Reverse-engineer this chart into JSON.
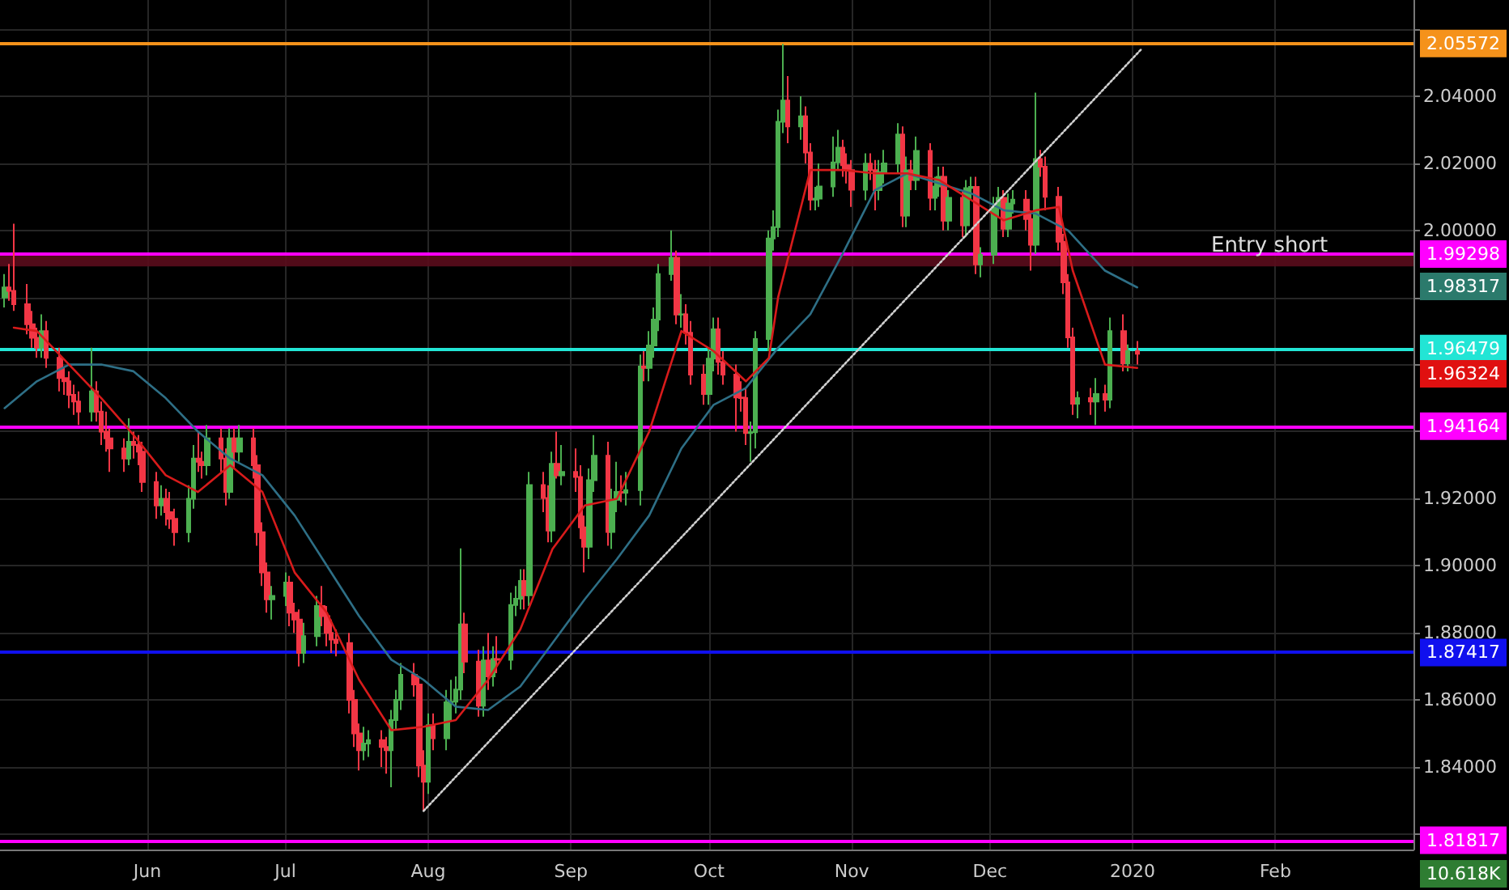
{
  "chart_data": {
    "type": "candlestick",
    "xlim": [
      "2019-04-30",
      "2020-03-02"
    ],
    "xticks": [
      {
        "value": "2019-06-01",
        "label": "Jun"
      },
      {
        "value": "2019-07-01",
        "label": "Jul"
      },
      {
        "value": "2019-08-01",
        "label": "Aug"
      },
      {
        "value": "2019-09-01",
        "label": "Sep"
      },
      {
        "value": "2019-10-01",
        "label": "Oct"
      },
      {
        "value": "2019-11-01",
        "label": "Nov"
      },
      {
        "value": "2019-12-01",
        "label": "Dec"
      },
      {
        "value": "2020-01-01",
        "label": "2020"
      },
      {
        "value": "2020-02-01",
        "label": "Feb"
      }
    ],
    "ylim": [
      1.8154,
      2.0687
    ],
    "yticks": [
      {
        "value": 1.82,
        "label": null
      },
      {
        "value": 1.84,
        "label": "1.84000"
      },
      {
        "value": 1.86,
        "label": "1.86000"
      },
      {
        "value": 1.88,
        "label": "1.88000"
      },
      {
        "value": 1.9,
        "label": "1.90000"
      },
      {
        "value": 1.92,
        "label": "1.92000"
      },
      {
        "value": 1.94,
        "label": null
      },
      {
        "value": 1.96,
        "label": null
      },
      {
        "value": 1.98,
        "label": null
      },
      {
        "value": 2.0,
        "label": "2.00000"
      },
      {
        "value": 2.02,
        "label": "2.02000"
      },
      {
        "value": 2.04,
        "label": "2.04000"
      },
      {
        "value": 2.06,
        "label": null
      }
    ],
    "grid": true,
    "marker": "none",
    "series": [
      {
        "type": "line",
        "color": "#2e6f86",
        "x": [
          "2019-05-01",
          "2019-05-08",
          "2019-05-15",
          "2019-05-22",
          "2019-05-29",
          "2019-06-05",
          "2019-06-12",
          "2019-06-19",
          "2019-06-26",
          "2019-07-03",
          "2019-07-10",
          "2019-07-17",
          "2019-07-24",
          "2019-07-31",
          "2019-08-07",
          "2019-08-14",
          "2019-08-21",
          "2019-08-28",
          "2019-09-04",
          "2019-09-11",
          "2019-09-18",
          "2019-09-25",
          "2019-10-02",
          "2019-10-09",
          "2019-10-16",
          "2019-10-23",
          "2019-10-30",
          "2019-11-06",
          "2019-11-13",
          "2019-11-20",
          "2019-11-27",
          "2019-12-04",
          "2019-12-11",
          "2019-12-18",
          "2019-12-26",
          "2020-01-02"
        ],
        "values": [
          1.947,
          1.955,
          1.96,
          1.96,
          1.958,
          1.95,
          1.94,
          1.932,
          1.927,
          1.915,
          1.9,
          1.885,
          1.872,
          1.866,
          1.858,
          1.857,
          1.864,
          1.877,
          1.89,
          1.902,
          1.915,
          1.935,
          1.948,
          1.953,
          1.965,
          1.975,
          1.993,
          2.012,
          2.017,
          2.014,
          2.011,
          2.006,
          2.005,
          2.0,
          1.988,
          1.983
        ]
      },
      {
        "type": "line",
        "color": "#d81b1b",
        "x": [
          "2019-05-03",
          "2019-05-08",
          "2019-05-15",
          "2019-05-22",
          "2019-05-29",
          "2019-06-05",
          "2019-06-12",
          "2019-06-19",
          "2019-06-26",
          "2019-07-03",
          "2019-07-10",
          "2019-07-17",
          "2019-07-24",
          "2019-07-31",
          "2019-08-07",
          "2019-08-14",
          "2019-08-21",
          "2019-08-28",
          "2019-09-04",
          "2019-09-11",
          "2019-09-18",
          "2019-09-25",
          "2019-10-02",
          "2019-10-09",
          "2019-10-14",
          "2019-10-16",
          "2019-10-23",
          "2019-10-30",
          "2019-11-06",
          "2019-11-13",
          "2019-11-20",
          "2019-11-27",
          "2019-12-04",
          "2019-12-11",
          "2019-12-16",
          "2019-12-19",
          "2019-12-26",
          "2020-01-02"
        ],
        "values": [
          1.971,
          1.97,
          1.96,
          1.95,
          1.939,
          1.927,
          1.922,
          1.93,
          1.922,
          1.898,
          1.886,
          1.866,
          1.851,
          1.852,
          1.854,
          1.866,
          1.881,
          1.905,
          1.918,
          1.92,
          1.94,
          1.97,
          1.964,
          1.955,
          1.962,
          1.98,
          2.018,
          2.018,
          2.017,
          2.017,
          2.015,
          2.009,
          2.003,
          2.006,
          2.007,
          1.988,
          1.96,
          1.959
        ]
      },
      {
        "type": "line",
        "color": "#d0d0d0",
        "line_style": "dotted",
        "x": [
          "2019-07-31",
          "2020-01-03"
        ],
        "values": [
          1.8269,
          2.0542
        ]
      },
      {
        "colors": [
          "#4caf50",
          "#f23645",
          "#f23645",
          "#f23645",
          "#f23645",
          "#f23645",
          "#4caf50",
          "#f23645",
          "#f23645",
          "#f23645",
          "#f23645",
          "#f23645",
          "#f23645",
          "#4caf50",
          "#f23645",
          "#f23645",
          "#f23645",
          "#f23645",
          "#f23645",
          "#4caf50",
          "#f23645",
          "#f23645",
          "#f23645",
          "#f23645",
          "#4caf50",
          "#f23645",
          "#f23645",
          "#f23645",
          "#4caf50",
          "#4caf50",
          "#f23645",
          "#f23645",
          "#4caf50",
          "#f23645",
          "#f23645",
          "#4caf50",
          "#f23645",
          "#4caf50",
          "#f23645",
          "#f23645",
          "#f23645",
          "#f23645",
          "#4caf50",
          "#4caf50",
          "#f23645",
          "#f23645",
          "#f23645",
          "#4caf50",
          "#4caf50",
          "#f23645",
          "#f23645",
          "#f23645",
          "#f23645",
          "#f23645",
          "#f23645",
          "#f23645",
          "#4caf50",
          "#4caf50",
          "#f23645",
          "#f23645",
          "#4caf50",
          "#4caf50",
          "#4caf50",
          "#f23645",
          "#f23645",
          "#f23645",
          "#4caf50",
          "#f23645",
          "#4caf50",
          "#4caf50",
          "#4caf50",
          "#4caf50",
          "#f23645",
          "#f23645",
          "#4caf50",
          "#f23645",
          "#4caf50",
          "#f23645",
          "#4caf50",
          "#4caf50",
          "#4caf50",
          "#f23645",
          "#4caf50",
          "#f23645",
          "#f23645",
          "#4caf50",
          "#f23645",
          "#4caf50",
          "#f23645",
          "#f23645",
          "#f23645",
          "#4caf50",
          "#4caf50",
          "#f23645",
          "#4caf50",
          "#4caf50",
          "#f23645",
          "#4caf50",
          "#4caf50",
          "#f23645",
          "#4caf50",
          "#4caf50",
          "#4caf50",
          "#4caf50",
          "#f23645",
          "#4caf50",
          "#f23645",
          "#f23645",
          "#f23645",
          "#4caf50",
          "#4caf50",
          "#f23645",
          "#f23645",
          "#f23645",
          "#f23645",
          "#f23645",
          "#4caf50",
          "#4caf50",
          "#4caf50",
          "#4caf50",
          "#4caf50",
          "#4caf50",
          "#f23645",
          "#4caf50",
          "#f23645",
          "#f23645",
          "#4caf50",
          "#4caf50",
          "#4caf50",
          "#4caf50",
          "#f23645",
          "#f23645",
          "#f23645",
          "#4caf50",
          "#f23645",
          "#f23645",
          "#4caf50",
          "#4caf50",
          "#4caf50",
          "#f23645",
          "#4caf50",
          "#f23645",
          "#4caf50",
          "#f23645",
          "#4caf50",
          "#4caf50",
          "#f23645",
          "#4caf50",
          "#f23645",
          "#4caf50",
          "#4caf50",
          "#f23645",
          "#4caf50",
          "#4caf50",
          "#4caf50",
          "#f23645",
          "#4caf50",
          "#4caf50",
          "#f23645",
          "#f23645",
          "#4caf50",
          "#f23645",
          "#f23645",
          "#f23645",
          "#f23645",
          "#f23645",
          "#f23645",
          "#4caf50",
          "#f23645",
          "#4caf50",
          "#f23645",
          "#4caf50",
          "#f23645",
          "#4caf50",
          "#f23645"
        ],
        "x": [
          "2019-05-01",
          "2019-05-02",
          "2019-05-03",
          "2019-05-06",
          "2019-05-07",
          "2019-05-08",
          "2019-05-09",
          "2019-05-10",
          "2019-05-13",
          "2019-05-14",
          "2019-05-15",
          "2019-05-16",
          "2019-05-17",
          "2019-05-20",
          "2019-05-21",
          "2019-05-22",
          "2019-05-23",
          "2019-05-24",
          "2019-05-27",
          "2019-05-28",
          "2019-05-29",
          "2019-05-30",
          "2019-05-31",
          "2019-06-03",
          "2019-06-04",
          "2019-06-05",
          "2019-06-06",
          "2019-06-07",
          "2019-06-10",
          "2019-06-11",
          "2019-06-12",
          "2019-06-13",
          "2019-06-14",
          "2019-06-17",
          "2019-06-18",
          "2019-06-19",
          "2019-06-20",
          "2019-06-21",
          "2019-06-24",
          "2019-06-25",
          "2019-06-26",
          "2019-06-27",
          "2019-06-28",
          "2019-07-01",
          "2019-07-02",
          "2019-07-03",
          "2019-07-04",
          "2019-07-05",
          "2019-07-08",
          "2019-07-09",
          "2019-07-10",
          "2019-07-11",
          "2019-07-12",
          "2019-07-15",
          "2019-07-16",
          "2019-07-17",
          "2019-07-18",
          "2019-07-19",
          "2019-07-22",
          "2019-07-23",
          "2019-07-24",
          "2019-07-25",
          "2019-07-26",
          "2019-07-29",
          "2019-07-30",
          "2019-07-31",
          "2019-08-01",
          "2019-08-02",
          "2019-08-05",
          "2019-08-06",
          "2019-08-07",
          "2019-08-08",
          "2019-08-09",
          "2019-08-12",
          "2019-08-13",
          "2019-08-14",
          "2019-08-15",
          "2019-08-16",
          "2019-08-19",
          "2019-08-20",
          "2019-08-21",
          "2019-08-22",
          "2019-08-23",
          "2019-08-26",
          "2019-08-27",
          "2019-08-28",
          "2019-08-29",
          "2019-08-30",
          "2019-09-02",
          "2019-09-03",
          "2019-09-04",
          "2019-09-05",
          "2019-09-06",
          "2019-09-09",
          "2019-09-10",
          "2019-09-11",
          "2019-09-12",
          "2019-09-13",
          "2019-09-16",
          "2019-09-17",
          "2019-09-18",
          "2019-09-19",
          "2019-09-20",
          "2019-09-23",
          "2019-09-24",
          "2019-09-25",
          "2019-09-26",
          "2019-09-27",
          "2019-09-30",
          "2019-10-01",
          "2019-10-02",
          "2019-10-03",
          "2019-10-04",
          "2019-10-07",
          "2019-10-08",
          "2019-10-09",
          "2019-10-10",
          "2019-10-11",
          "2019-10-14",
          "2019-10-15",
          "2019-10-16",
          "2019-10-17",
          "2019-10-18",
          "2019-10-21",
          "2019-10-22",
          "2019-10-23",
          "2019-10-24",
          "2019-10-25",
          "2019-10-28",
          "2019-10-29",
          "2019-10-30",
          "2019-10-31",
          "2019-11-01",
          "2019-11-04",
          "2019-11-05",
          "2019-11-06",
          "2019-11-07",
          "2019-11-08",
          "2019-11-11",
          "2019-11-12",
          "2019-11-13",
          "2019-11-14",
          "2019-11-15",
          "2019-11-18",
          "2019-11-19",
          "2019-11-20",
          "2019-11-21",
          "2019-11-22",
          "2019-11-25",
          "2019-11-26",
          "2019-11-27",
          "2019-11-28",
          "2019-11-29",
          "2019-12-02",
          "2019-12-03",
          "2019-12-04",
          "2019-12-05",
          "2019-12-06",
          "2019-12-09",
          "2019-12-10",
          "2019-12-11",
          "2019-12-12",
          "2019-12-13",
          "2019-12-16",
          "2019-12-17",
          "2019-12-18",
          "2019-12-19",
          "2019-12-20",
          "2019-12-23",
          "2019-12-24",
          "2019-12-26",
          "2019-12-27",
          "2019-12-30",
          "2019-12-31",
          "2020-01-02"
        ],
        "ohlc": [
          [
            1.98,
            1.987,
            1.977,
            1.983
          ],
          [
            1.983,
            1.99,
            1.979,
            1.982
          ],
          [
            1.982,
            2.002,
            1.976,
            1.978
          ],
          [
            1.978,
            1.984,
            1.969,
            1.972
          ],
          [
            1.972,
            1.976,
            1.965,
            1.968
          ],
          [
            1.968,
            1.971,
            1.962,
            1.965
          ],
          [
            1.965,
            1.975,
            1.962,
            1.97
          ],
          [
            1.97,
            1.973,
            1.959,
            1.962
          ],
          [
            1.962,
            1.965,
            1.952,
            1.956
          ],
          [
            1.956,
            1.959,
            1.951,
            1.955
          ],
          [
            1.955,
            1.958,
            1.947,
            1.951
          ],
          [
            1.951,
            1.954,
            1.945,
            1.949
          ],
          [
            1.949,
            1.952,
            1.942,
            1.946
          ],
          [
            1.946,
            1.965,
            1.943,
            1.952
          ],
          [
            1.952,
            1.955,
            1.943,
            1.946
          ],
          [
            1.946,
            1.949,
            1.936,
            1.94
          ],
          [
            1.94,
            1.946,
            1.934,
            1.938
          ],
          [
            1.938,
            1.941,
            1.928,
            1.935
          ],
          [
            1.935,
            1.938,
            1.928,
            1.932
          ],
          [
            1.932,
            1.944,
            1.93,
            1.937
          ],
          [
            1.937,
            1.94,
            1.932,
            1.936
          ],
          [
            1.936,
            1.939,
            1.93,
            1.934
          ],
          [
            1.934,
            1.937,
            1.922,
            1.925
          ],
          [
            1.925,
            1.928,
            1.914,
            1.918
          ],
          [
            1.918,
            1.924,
            1.915,
            1.92
          ],
          [
            1.92,
            1.923,
            1.912,
            1.916
          ],
          [
            1.916,
            1.922,
            1.911,
            1.914
          ],
          [
            1.914,
            1.917,
            1.906,
            1.91
          ],
          [
            1.91,
            1.924,
            1.907,
            1.92
          ],
          [
            1.92,
            1.936,
            1.917,
            1.932
          ],
          [
            1.932,
            1.94,
            1.928,
            1.931
          ],
          [
            1.931,
            1.934,
            1.926,
            1.93
          ],
          [
            1.93,
            1.942,
            1.927,
            1.938
          ],
          [
            1.938,
            1.941,
            1.928,
            1.932
          ],
          [
            1.932,
            1.935,
            1.918,
            1.922
          ],
          [
            1.922,
            1.941,
            1.92,
            1.938
          ],
          [
            1.938,
            1.941,
            1.929,
            1.934
          ],
          [
            1.934,
            1.942,
            1.931,
            1.938
          ],
          [
            1.938,
            1.941,
            1.926,
            1.93
          ],
          [
            1.93,
            1.933,
            1.906,
            1.91
          ],
          [
            1.91,
            1.913,
            1.894,
            1.898
          ],
          [
            1.898,
            1.901,
            1.886,
            1.89
          ],
          [
            1.89,
            1.894,
            1.884,
            1.891
          ],
          [
            1.891,
            1.898,
            1.888,
            1.895
          ],
          [
            1.895,
            1.897,
            1.882,
            1.886
          ],
          [
            1.886,
            1.889,
            1.88,
            1.884
          ],
          [
            1.884,
            1.887,
            1.87,
            1.874
          ],
          [
            1.874,
            1.883,
            1.871,
            1.879
          ],
          [
            1.879,
            1.891,
            1.876,
            1.888
          ],
          [
            1.888,
            1.894,
            1.882,
            1.885
          ],
          [
            1.885,
            1.888,
            1.876,
            1.88
          ],
          [
            1.88,
            1.884,
            1.874,
            1.878
          ],
          [
            1.878,
            1.881,
            1.873,
            1.877
          ],
          [
            1.877,
            1.88,
            1.856,
            1.86
          ],
          [
            1.86,
            1.863,
            1.846,
            1.85
          ],
          [
            1.85,
            1.853,
            1.839,
            1.845
          ],
          [
            1.845,
            1.852,
            1.842,
            1.847
          ],
          [
            1.847,
            1.851,
            1.843,
            1.848
          ],
          [
            1.848,
            1.851,
            1.84,
            1.846
          ],
          [
            1.846,
            1.849,
            1.838,
            1.845
          ],
          [
            1.845,
            1.857,
            1.834,
            1.854
          ],
          [
            1.854,
            1.863,
            1.851,
            1.86
          ],
          [
            1.86,
            1.871,
            1.857,
            1.8675
          ],
          [
            1.8675,
            1.871,
            1.861,
            1.8646
          ],
          [
            1.8646,
            1.867,
            1.837,
            1.8404
          ],
          [
            1.8404,
            1.845,
            1.8269,
            1.8356
          ],
          [
            1.8356,
            1.856,
            1.832,
            1.8525
          ],
          [
            1.8525,
            1.856,
            1.845,
            1.8486
          ],
          [
            1.8486,
            1.863,
            1.845,
            1.8593
          ],
          [
            1.8593,
            1.866,
            1.854,
            1.8595
          ],
          [
            1.8595,
            1.867,
            1.856,
            1.8631
          ],
          [
            1.8631,
            1.9052,
            1.86,
            1.8825
          ],
          [
            1.8825,
            1.886,
            1.868,
            1.8714
          ],
          [
            1.8714,
            1.875,
            1.855,
            1.8583
          ],
          [
            1.8583,
            1.876,
            1.855,
            1.8718
          ],
          [
            1.8718,
            1.88,
            1.863,
            1.867
          ],
          [
            1.867,
            1.876,
            1.864,
            1.8722
          ],
          [
            1.8722,
            1.879,
            1.868,
            1.872
          ],
          [
            1.872,
            1.892,
            1.869,
            1.8883
          ],
          [
            1.8883,
            1.894,
            1.885,
            1.8902
          ],
          [
            1.8902,
            1.899,
            1.887,
            1.8955
          ],
          [
            1.8955,
            1.899,
            1.887,
            1.8912
          ],
          [
            1.8912,
            1.928,
            1.888,
            1.9241
          ],
          [
            1.9241,
            1.928,
            1.916,
            1.9202
          ],
          [
            1.9202,
            1.924,
            1.907,
            1.9105
          ],
          [
            1.9105,
            1.934,
            1.907,
            1.9304
          ],
          [
            1.9304,
            1.94,
            1.926,
            1.927
          ],
          [
            1.927,
            1.936,
            1.924,
            1.928
          ],
          [
            1.928,
            1.935,
            1.922,
            1.9265
          ],
          [
            1.9265,
            1.93,
            1.908,
            1.9115
          ],
          [
            1.9115,
            1.915,
            1.898,
            1.9057
          ],
          [
            1.9057,
            1.929,
            1.902,
            1.9255
          ],
          [
            1.9255,
            1.939,
            1.922,
            1.9328
          ],
          [
            1.9328,
            1.937,
            1.906,
            1.9101
          ],
          [
            1.9101,
            1.923,
            1.905,
            1.9197
          ],
          [
            1.9197,
            1.931,
            1.916,
            1.922
          ],
          [
            1.922,
            1.927,
            1.919,
            1.9218
          ],
          [
            1.9218,
            1.928,
            1.918,
            1.9226
          ],
          [
            1.9226,
            1.963,
            1.918,
            1.9594
          ],
          [
            1.9594,
            1.964,
            1.955,
            1.959
          ],
          [
            1.959,
            1.97,
            1.955,
            1.9657
          ],
          [
            1.9657,
            1.977,
            1.962,
            1.9734
          ],
          [
            1.9734,
            1.99,
            1.97,
            1.987
          ],
          [
            1.987,
            2.0,
            1.985,
            1.9918
          ],
          [
            1.9918,
            1.994,
            1.972,
            1.9749
          ],
          [
            1.9749,
            1.981,
            1.971,
            1.975
          ],
          [
            1.975,
            1.978,
            1.966,
            1.9695
          ],
          [
            1.9695,
            1.973,
            1.954,
            1.957
          ],
          [
            1.957,
            1.96,
            1.948,
            1.9512
          ],
          [
            1.9512,
            1.965,
            1.948,
            1.9618
          ],
          [
            1.9618,
            1.974,
            1.958,
            1.9705
          ],
          [
            1.9705,
            1.974,
            1.957,
            1.9608
          ],
          [
            1.9608,
            1.964,
            1.954,
            1.957
          ],
          [
            1.957,
            1.96,
            1.94,
            1.9502
          ],
          [
            1.9502,
            1.955,
            1.946,
            1.95
          ],
          [
            1.95,
            1.953,
            1.936,
            1.9396
          ],
          [
            1.9396,
            1.943,
            1.931,
            1.9398
          ],
          [
            1.9398,
            1.97,
            1.935,
            1.9676
          ],
          [
            1.9676,
            2.0,
            1.964,
            1.9976
          ],
          [
            1.9976,
            2.006,
            1.994,
            2.001
          ],
          [
            2.001,
            2.036,
            1.998,
            2.0324
          ],
          [
            2.0324,
            2.0556,
            2.029,
            2.0387
          ],
          [
            2.0387,
            2.046,
            2.026,
            2.031
          ],
          [
            2.031,
            2.04,
            2.027,
            2.034
          ],
          [
            2.034,
            2.037,
            2.02,
            2.0232
          ],
          [
            2.0232,
            2.026,
            2.006,
            2.0092
          ],
          [
            2.0092,
            2.013,
            2.006,
            2.0095
          ],
          [
            2.0095,
            2.02,
            2.007,
            2.0131
          ],
          [
            2.0131,
            2.028,
            2.01,
            2.0203
          ],
          [
            2.0203,
            2.03,
            2.018,
            2.0247
          ],
          [
            2.0247,
            2.027,
            2.016,
            2.0194
          ],
          [
            2.0194,
            2.023,
            2.014,
            2.018
          ],
          [
            2.018,
            2.021,
            2.007,
            2.0121
          ],
          [
            2.0121,
            2.023,
            2.009,
            2.0199
          ],
          [
            2.0199,
            2.023,
            2.015,
            2.018
          ],
          [
            2.018,
            2.021,
            2.006,
            2.012
          ],
          [
            2.012,
            2.021,
            2.009,
            2.0174
          ],
          [
            2.0174,
            2.024,
            2.014,
            2.02
          ],
          [
            2.02,
            2.032,
            2.017,
            2.0286
          ],
          [
            2.0286,
            2.031,
            2.001,
            2.0044
          ],
          [
            2.0044,
            2.022,
            2.001,
            2.0179
          ],
          [
            2.0179,
            2.021,
            2.012,
            2.015
          ],
          [
            2.015,
            2.028,
            2.012,
            2.0237
          ],
          [
            2.0237,
            2.026,
            2.006,
            2.0097
          ],
          [
            2.0097,
            2.016,
            2.006,
            2.0131
          ],
          [
            2.0131,
            2.019,
            2.01,
            2.016
          ],
          [
            2.016,
            2.019,
            2.0,
            2.0029
          ],
          [
            2.0029,
            2.012,
            2.0,
            2.0097
          ],
          [
            2.0097,
            2.012,
            1.998,
            2.0015
          ],
          [
            2.0015,
            2.015,
            1.998,
            2.0126
          ],
          [
            2.0126,
            2.016,
            2.009,
            2.013
          ],
          [
            2.013,
            2.016,
            1.987,
            1.9899
          ],
          [
            1.9899,
            1.995,
            1.986,
            1.9928
          ],
          [
            1.9928,
            2.01,
            1.99,
            2.0068
          ],
          [
            2.0068,
            2.013,
            2.004,
            2.0097
          ],
          [
            2.0097,
            2.012,
            1.998,
            2.0005
          ],
          [
            2.0005,
            2.011,
            1.998,
            2.008
          ],
          [
            2.008,
            2.012,
            2.005,
            2.0092
          ],
          [
            2.0092,
            2.012,
            2.0,
            2.0034
          ],
          [
            2.0034,
            2.006,
            1.988,
            1.9957
          ],
          [
            1.9957,
            2.0411,
            1.993,
            2.0213
          ],
          [
            2.0213,
            2.024,
            2.016,
            2.019
          ],
          [
            2.019,
            2.022,
            2.006,
            2.01
          ],
          [
            2.01,
            2.013,
            1.994,
            1.9966
          ],
          [
            1.9966,
            1.999,
            1.981,
            1.9845
          ],
          [
            1.9845,
            1.987,
            1.965,
            1.9681
          ],
          [
            1.9681,
            1.971,
            1.945,
            1.9483
          ],
          [
            1.9483,
            1.952,
            1.944,
            1.95
          ],
          [
            1.95,
            1.953,
            1.945,
            1.949
          ],
          [
            1.949,
            1.956,
            1.942,
            1.9512
          ],
          [
            1.9512,
            1.954,
            1.946,
            1.9495
          ],
          [
            1.9495,
            1.974,
            1.947,
            1.97
          ],
          [
            1.97,
            1.975,
            1.958,
            1.9604
          ],
          [
            1.9604,
            1.966,
            1.958,
            1.964
          ],
          [
            1.964,
            1.967,
            1.96,
            1.9632
          ]
        ]
      }
    ],
    "ref_lines": [
      {
        "axis": "y",
        "value": 2.05572,
        "label": "2.05572",
        "color": "#f5921b"
      },
      {
        "axis": "y",
        "value": 1.99298,
        "label": "1.99298",
        "color": "#ff00ff"
      },
      {
        "axis": "y",
        "value": 1.96479,
        "label": "1.96479",
        "color": "#22e5d5"
      },
      {
        "axis": "y",
        "value": 1.94164,
        "label": "1.94164",
        "color": "#ff00ff"
      },
      {
        "axis": "y",
        "value": 1.87417,
        "label": "1.87417",
        "color": "#1010ee"
      },
      {
        "axis": "y",
        "value": 1.81817,
        "label": "1.81817",
        "color": "#ff00ff"
      }
    ],
    "bands": [
      {
        "axis": "y",
        "from": 1.9893,
        "to": 1.9925,
        "color": "#5a0c1c"
      }
    ],
    "annotations": [
      "Entry short",
      "1.98317",
      "1.96324",
      "10.618K"
    ]
  }
}
